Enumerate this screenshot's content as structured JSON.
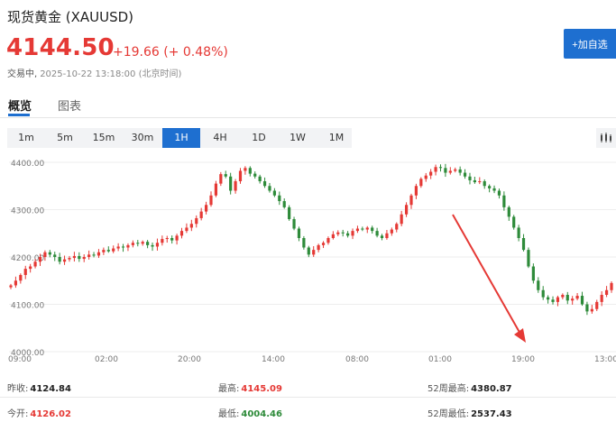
{
  "header": {
    "title": "现货黄金 (XAUUSD)",
    "price": "4144.50",
    "change": "+19.66 (+ 0.48%)",
    "status_label": "交易中,",
    "status_time": "2025-10-22 13:18:00 (北京时间)",
    "watch_button": "+加自选"
  },
  "tabs": [
    {
      "label": "概览",
      "active": true
    },
    {
      "label": "图表",
      "active": false
    }
  ],
  "intervals": [
    "1m",
    "5m",
    "15m",
    "30m",
    "1H",
    "4H",
    "1D",
    "1W",
    "1M"
  ],
  "active_interval": "1H",
  "colors": {
    "up": "#e53935",
    "down": "#2e8b3a",
    "accent": "#1e6fd0"
  },
  "chart_data": {
    "type": "candlestick",
    "y_ticks": [
      "4400.00",
      "4300.00",
      "4200.00",
      "4100.00",
      "4000.00"
    ],
    "x_ticks": [
      "09:00",
      "02:00",
      "20:00",
      "14:00",
      "08:00",
      "01:00",
      "19:00",
      "13:00"
    ],
    "ylim": [
      4000,
      4400
    ],
    "close_path": [
      4140,
      4150,
      4162,
      4175,
      4180,
      4190,
      4200,
      4210,
      4205,
      4200,
      4190,
      4195,
      4198,
      4202,
      4196,
      4200,
      4205,
      4203,
      4210,
      4215,
      4212,
      4218,
      4222,
      4220,
      4225,
      4230,
      4228,
      4232,
      4225,
      4222,
      4230,
      4238,
      4240,
      4235,
      4245,
      4255,
      4262,
      4270,
      4282,
      4296,
      4310,
      4330,
      4355,
      4375,
      4370,
      4340,
      4360,
      4382,
      4388,
      4376,
      4370,
      4360,
      4350,
      4340,
      4330,
      4318,
      4305,
      4280,
      4260,
      4240,
      4220,
      4205,
      4215,
      4225,
      4230,
      4240,
      4248,
      4252,
      4250,
      4245,
      4255,
      4260,
      4258,
      4262,
      4255,
      4245,
      4240,
      4250,
      4258,
      4270,
      4290,
      4310,
      4330,
      4350,
      4365,
      4372,
      4380,
      4390,
      4388,
      4378,
      4382,
      4385,
      4378,
      4370,
      4362,
      4358,
      4360,
      4350,
      4345,
      4340,
      4330,
      4305,
      4285,
      4262,
      4240,
      4215,
      4180,
      4150,
      4130,
      4115,
      4110,
      4105,
      4115,
      4120,
      4108,
      4112,
      4118,
      4100,
      4085,
      4090,
      4105,
      4120,
      4130,
      4145
    ]
  },
  "stats": {
    "row1": [
      {
        "label": "昨收:",
        "value": "4124.84",
        "tone": "normal"
      },
      {
        "label": "最高:",
        "value": "4145.09",
        "tone": "red"
      },
      {
        "label": "52周最高:",
        "value": "4380.87",
        "tone": "normal"
      }
    ],
    "row2": [
      {
        "label": "今开:",
        "value": "4126.02",
        "tone": "red"
      },
      {
        "label": "最低:",
        "value": "4004.46",
        "tone": "green"
      },
      {
        "label": "52周最低:",
        "value": "2537.43",
        "tone": "normal"
      }
    ]
  }
}
